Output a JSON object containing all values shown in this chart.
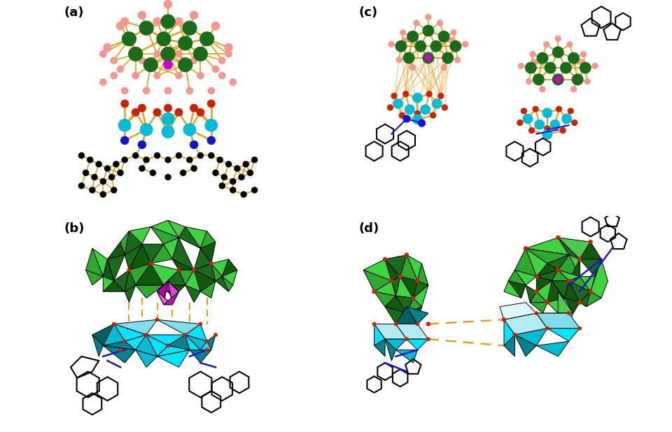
{
  "figure_width": 9.6,
  "figure_height": 6.18,
  "dpi": 100,
  "background_color": "#ffffff",
  "panels": [
    "(a)",
    "(b)",
    "(c)",
    "(d)"
  ],
  "panel_label_fontsize": 13,
  "panel_label_color": "#000000",
  "colors": {
    "green_dark": "#1a6b1a",
    "green_dark2": "#0f5a0f",
    "green_medium": "#2ea82e",
    "green_light": "#50c850",
    "green_bright": "#3dd43d",
    "cyan_bright": "#00e5ff",
    "cyan_mid": "#00bcd4",
    "cyan_dark": "#00838f",
    "teal": "#006064",
    "salmon": "#f4978e",
    "red_dot": "#cc2200",
    "blue": "#1515cc",
    "black": "#000000",
    "magenta": "#cc00cc",
    "orange_bond": "#e8a020",
    "orange_light": "#f0b84a",
    "background": "#ffffff"
  }
}
